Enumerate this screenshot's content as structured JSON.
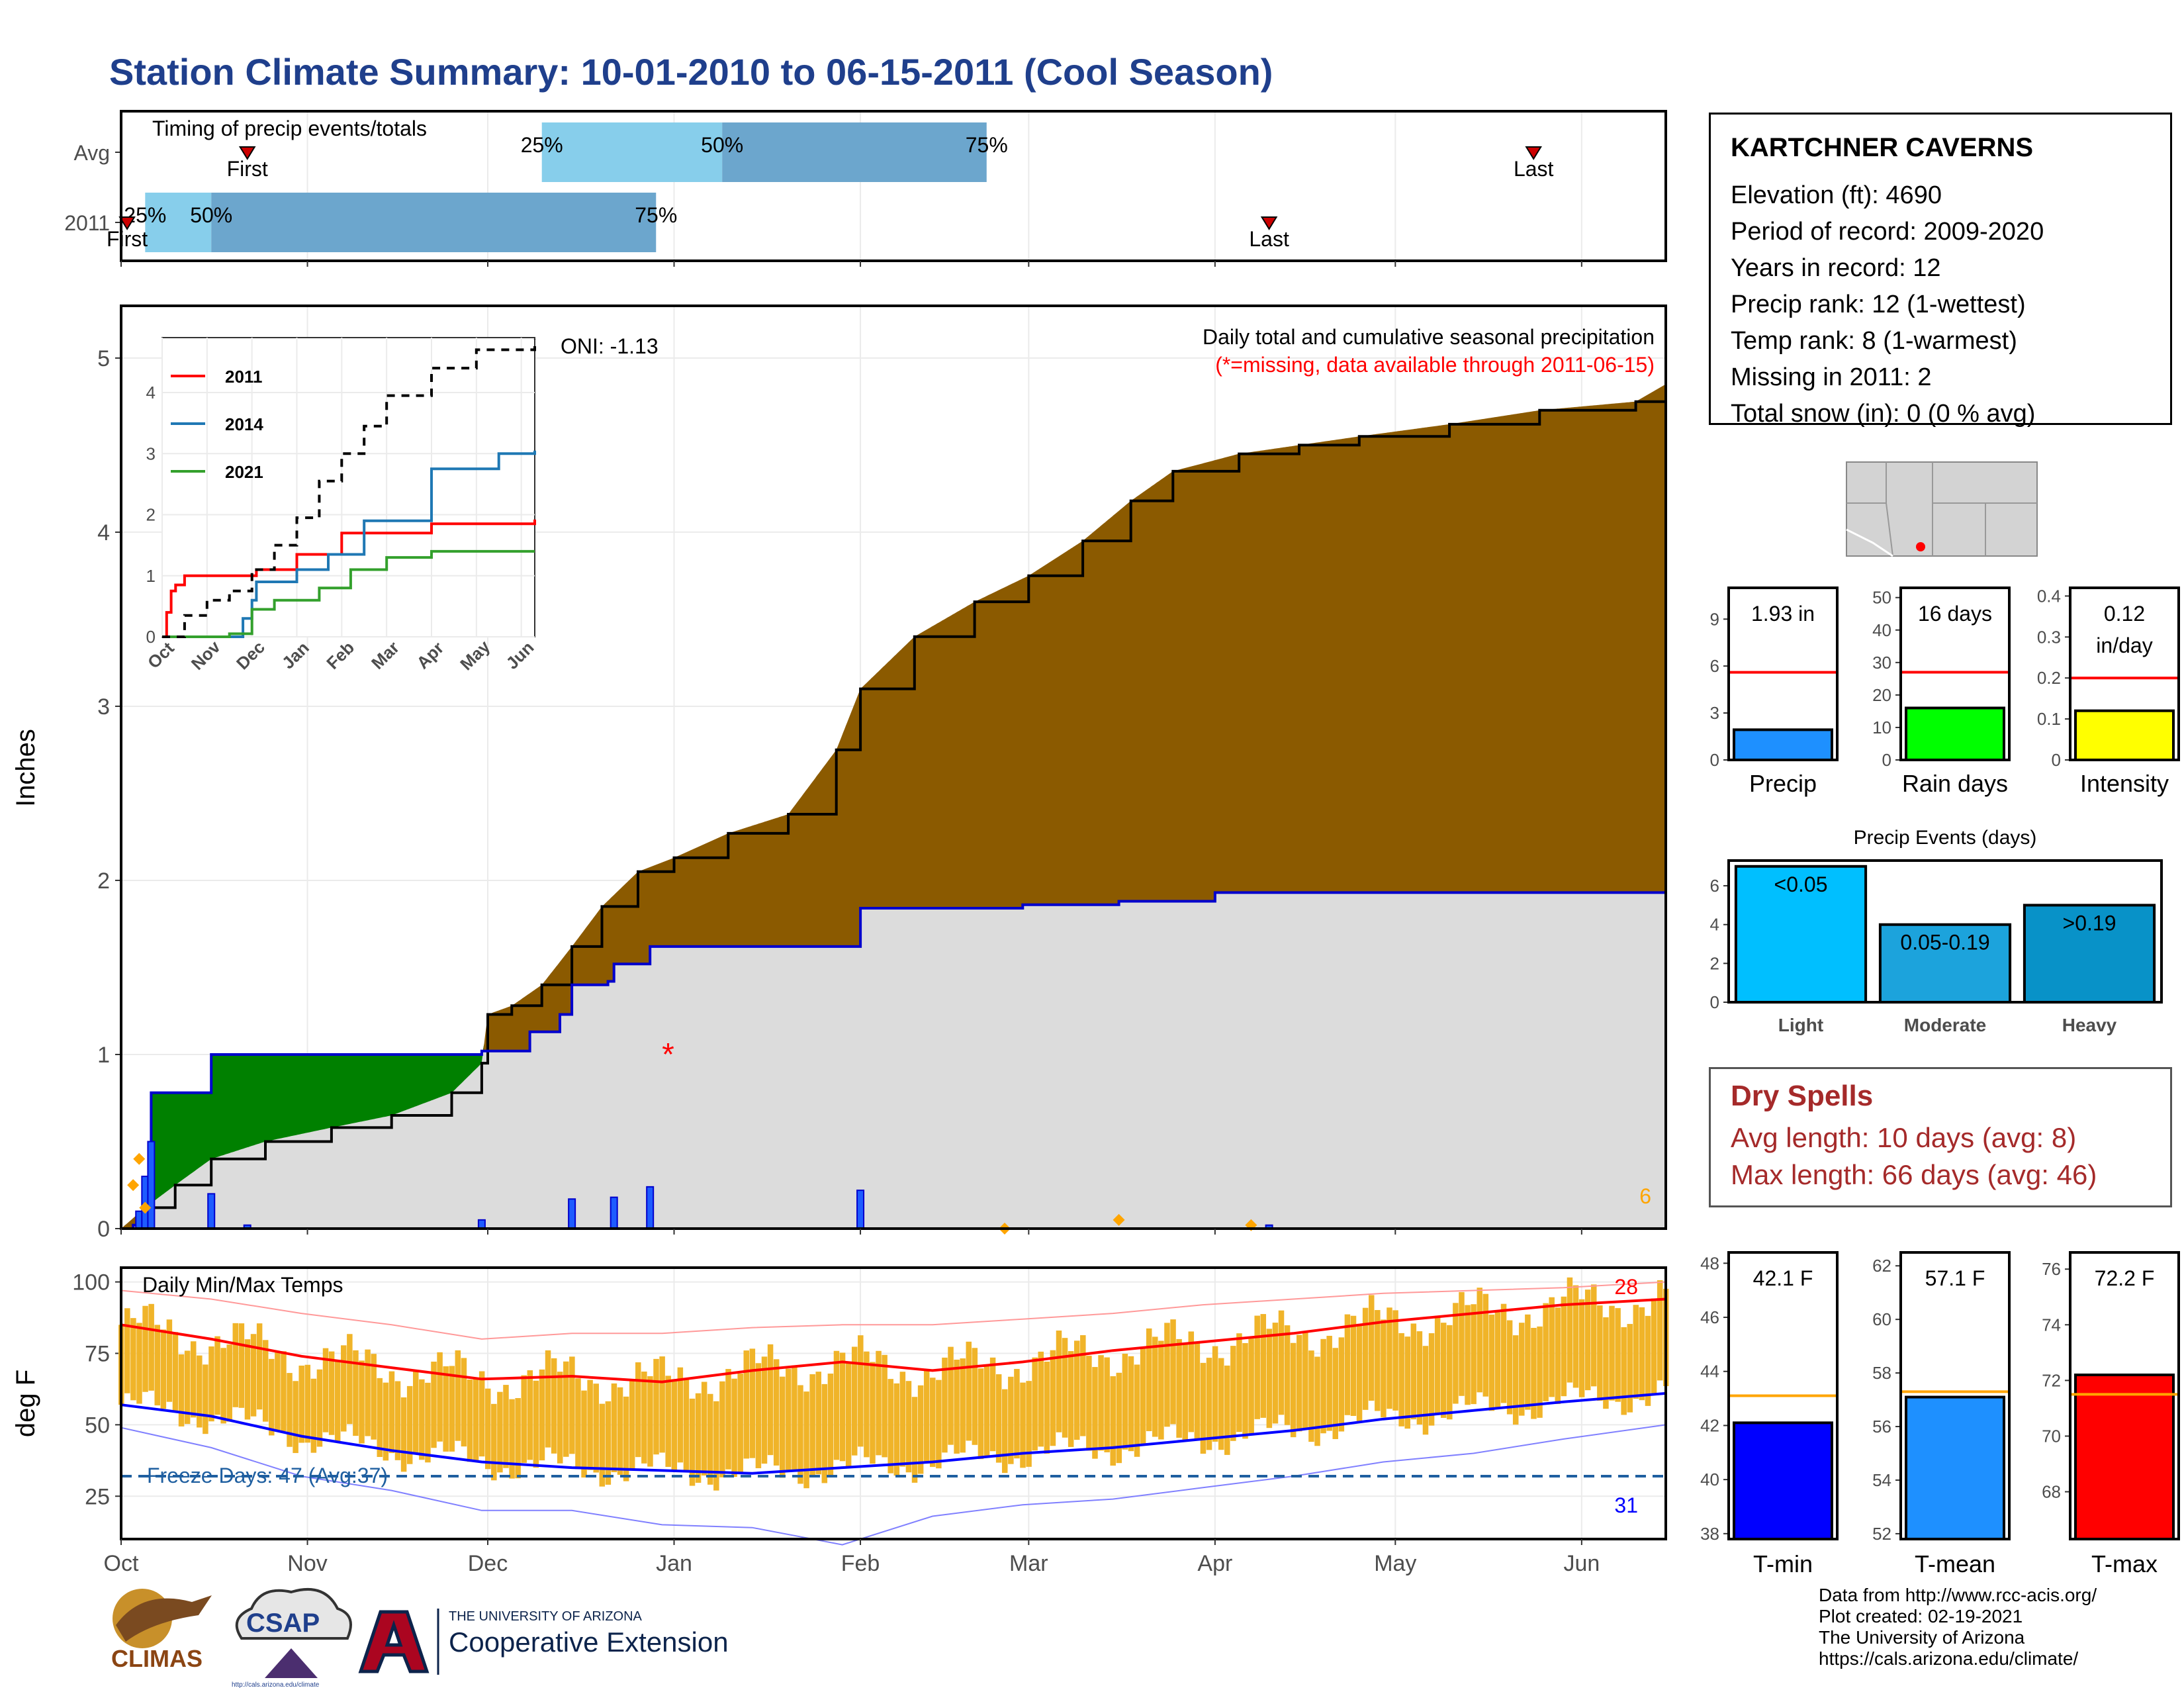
{
  "title": "Station Climate Summary: 10-01-2010 to 06-15-2011 (Cool Season)",
  "station": {
    "name": "KARTCHNER CAVERNS",
    "lines": [
      "Elevation (ft): 4690",
      "Period of record: 2009-2020",
      "Years in record: 12",
      "Precip rank: 12 (1-wettest)",
      "Temp rank: 8 (1-warmest)",
      "Missing in 2011: 2",
      "Total snow (in): 0 (0 % avg)"
    ]
  },
  "dry_spells": {
    "title": "Dry Spells",
    "avg_line": "Avg length: 10 days (avg: 8)",
    "max_line": "Max length: 66 days (avg: 46)"
  },
  "footer": {
    "lines": [
      "Data from http://www.rcc-acis.org/",
      "Plot created: 02-19-2021",
      "The University of Arizona",
      "https://cals.arizona.edu/climate/"
    ],
    "logos": [
      "CLIMAS",
      "CSAP",
      "THE UNIVERSITY OF ARIZONA",
      "Cooperative Extension",
      "http://cals.arizona.edu/climate"
    ]
  },
  "colors": {
    "title": "#1f3f8c",
    "bar_light": "#87ceeb",
    "bar_dark": "#6ca6cd",
    "deficit": "#8b5a00",
    "surplus": "#008000",
    "normal_fill": "#dcdcdc",
    "normal_line": "#0000cd",
    "tmax": "#ff0000",
    "tmin": "#0000ff",
    "temp_bar": "#f0b429",
    "dry": "#a52a2a",
    "onimark": "#ff0000",
    "freeze": "#1f5fa0"
  },
  "chart_data": [
    {
      "type": "bar",
      "name": "timing",
      "title": "Timing of precip events/totals",
      "x_month_ticks": [
        "Oct",
        "Nov",
        "Dec",
        "Jan",
        "Feb",
        "Mar",
        "Apr",
        "May",
        "Jun"
      ],
      "rows": [
        {
          "label": "Avg",
          "first": "2010-10-22",
          "last": "2011-05-24",
          "p25": "2010-12-10",
          "p50": "2011-01-09",
          "p75": "2011-02-22",
          "labels": {
            "first": "First",
            "last": "Last",
            "p25": "25%",
            "p50": "50%",
            "p75": "75%"
          }
        },
        {
          "label": "2011",
          "first": "2010-10-02",
          "last": "2011-04-10",
          "p25": "2010-10-05",
          "p50": "2010-10-16",
          "p75": "2010-12-29",
          "labels": {
            "first": "First",
            "last": "Last",
            "p25": "25%",
            "p50": "50%",
            "p75": "75%"
          }
        }
      ]
    },
    {
      "type": "area",
      "name": "precip",
      "ylabel": "Inches",
      "subtitle1": "Daily total and cumulative seasonal precipitation",
      "subtitle2": "(*=missing, data available through 2011-06-15)",
      "oni": "ONI: -1.13",
      "ylim": [
        0,
        5.3
      ],
      "y_ticks": [
        0,
        1,
        2,
        3,
        4,
        5
      ],
      "x_month_ticks": [
        "Oct",
        "Nov",
        "Dec",
        "Jan",
        "Feb",
        "Mar",
        "Apr",
        "May",
        "Jun"
      ],
      "count_label": "6",
      "missing_marker": {
        "x": "2010-12-31",
        "y": 1.0
      },
      "observed_cumulative": [
        [
          "2010-10-01",
          0
        ],
        [
          "2010-10-03",
          0.02
        ],
        [
          "2010-10-04",
          0.08
        ],
        [
          "2010-10-05",
          0.28
        ],
        [
          "2010-10-06",
          0.78
        ],
        [
          "2010-10-16",
          1.0
        ],
        [
          "2010-11-30",
          1.02
        ],
        [
          "2010-12-08",
          1.13
        ],
        [
          "2010-12-13",
          1.23
        ],
        [
          "2010-12-15",
          1.4
        ],
        [
          "2010-12-21",
          1.42
        ],
        [
          "2010-12-22",
          1.52
        ],
        [
          "2010-12-28",
          1.62
        ],
        [
          "2011-02-01",
          1.84
        ],
        [
          "2011-02-28",
          1.86
        ],
        [
          "2011-03-16",
          1.88
        ],
        [
          "2011-04-01",
          1.93
        ],
        [
          "2011-06-15",
          1.93
        ]
      ],
      "avg_cumulative": [
        [
          "2010-10-01",
          0.0
        ],
        [
          "2010-10-05",
          0.12
        ],
        [
          "2010-10-10",
          0.25
        ],
        [
          "2010-10-16",
          0.4
        ],
        [
          "2010-10-25",
          0.5
        ],
        [
          "2010-11-05",
          0.58
        ],
        [
          "2010-11-15",
          0.65
        ],
        [
          "2010-11-25",
          0.78
        ],
        [
          "2010-11-30",
          0.95
        ],
        [
          "2010-12-01",
          1.23
        ],
        [
          "2010-12-05",
          1.28
        ],
        [
          "2010-12-10",
          1.4
        ],
        [
          "2010-12-15",
          1.62
        ],
        [
          "2010-12-20",
          1.85
        ],
        [
          "2010-12-26",
          2.05
        ],
        [
          "2011-01-01",
          2.13
        ],
        [
          "2011-01-10",
          2.27
        ],
        [
          "2011-01-20",
          2.38
        ],
        [
          "2011-01-28",
          2.75
        ],
        [
          "2011-02-01",
          3.1
        ],
        [
          "2011-02-10",
          3.4
        ],
        [
          "2011-02-20",
          3.6
        ],
        [
          "2011-03-01",
          3.75
        ],
        [
          "2011-03-10",
          3.95
        ],
        [
          "2011-03-18",
          4.18
        ],
        [
          "2011-03-25",
          4.35
        ],
        [
          "2011-04-05",
          4.45
        ],
        [
          "2011-04-15",
          4.5
        ],
        [
          "2011-04-25",
          4.55
        ],
        [
          "2011-05-10",
          4.62
        ],
        [
          "2011-05-25",
          4.7
        ],
        [
          "2011-06-10",
          4.75
        ],
        [
          "2011-06-15",
          4.85
        ]
      ],
      "daily_bars": [
        [
          "2010-10-04",
          0.1
        ],
        [
          "2010-10-05",
          0.3
        ],
        [
          "2010-10-06",
          0.5
        ],
        [
          "2010-10-16",
          0.2
        ],
        [
          "2010-10-22",
          0.02
        ],
        [
          "2010-11-30",
          0.05
        ],
        [
          "2010-12-15",
          0.17
        ],
        [
          "2010-12-22",
          0.18
        ],
        [
          "2010-12-28",
          0.24
        ],
        [
          "2011-02-01",
          0.22
        ],
        [
          "2011-04-10",
          0.02
        ]
      ],
      "event_points": [
        [
          "2010-10-03",
          0.25
        ],
        [
          "2010-10-04",
          0.4
        ],
        [
          "2010-10-05",
          0.12
        ],
        [
          "2011-02-25",
          0.0
        ],
        [
          "2011-03-16",
          0.05
        ],
        [
          "2011-04-07",
          0.02
        ]
      ]
    },
    {
      "type": "line",
      "name": "inset",
      "x_month_ticks": [
        "Oct",
        "Nov",
        "Dec",
        "Jan",
        "Feb",
        "Mar",
        "Apr",
        "May",
        "Jun"
      ],
      "y_ticks": [
        0,
        1,
        2,
        3,
        4
      ],
      "ylim": [
        0,
        4.9
      ],
      "series": [
        {
          "name": "2011",
          "color": "#ff0000",
          "points": [
            [
              0,
              0
            ],
            [
              0.1,
              0.4
            ],
            [
              0.2,
              0.75
            ],
            [
              0.3,
              0.85
            ],
            [
              0.5,
              1.0
            ],
            [
              2.0,
              1.0
            ],
            [
              2.1,
              1.1
            ],
            [
              3.0,
              1.35
            ],
            [
              4.0,
              1.7
            ],
            [
              6.0,
              1.85
            ],
            [
              8.3,
              1.92
            ]
          ]
        },
        {
          "name": "2014",
          "color": "#1f78b4",
          "points": [
            [
              0,
              0
            ],
            [
              1.0,
              0.0
            ],
            [
              1.8,
              0.3
            ],
            [
              2.0,
              0.6
            ],
            [
              2.1,
              0.9
            ],
            [
              3.0,
              1.1
            ],
            [
              3.7,
              1.35
            ],
            [
              4.5,
              1.9
            ],
            [
              6.0,
              2.75
            ],
            [
              7.5,
              3.0
            ],
            [
              8.3,
              3.05
            ]
          ]
        },
        {
          "name": "2021",
          "color": "#33a02c",
          "points": [
            [
              0,
              0
            ],
            [
              1.0,
              0.0
            ],
            [
              1.5,
              0.05
            ],
            [
              2.0,
              0.45
            ],
            [
              2.5,
              0.6
            ],
            [
              3.5,
              0.8
            ],
            [
              4.2,
              1.1
            ],
            [
              5.0,
              1.3
            ],
            [
              6.0,
              1.4
            ],
            [
              8.3,
              1.4
            ]
          ]
        },
        {
          "name": "",
          "color": "#000000",
          "dashed": true,
          "points": [
            [
              0,
              0
            ],
            [
              0.5,
              0.35
            ],
            [
              1.0,
              0.6
            ],
            [
              1.5,
              0.75
            ],
            [
              2.0,
              1.1
            ],
            [
              2.5,
              1.5
            ],
            [
              3.0,
              1.95
            ],
            [
              3.5,
              2.55
            ],
            [
              4.0,
              3.0
            ],
            [
              4.5,
              3.45
            ],
            [
              5.0,
              3.95
            ],
            [
              6.0,
              4.4
            ],
            [
              7.0,
              4.7
            ],
            [
              8.3,
              4.87
            ]
          ]
        }
      ]
    },
    {
      "type": "bar",
      "name": "temps",
      "title": "Daily Min/Max Temps",
      "ylabel": "deg F",
      "ylim": [
        10,
        105
      ],
      "y_ticks": [
        25,
        50,
        75,
        100
      ],
      "x_month_ticks": [
        "Oct",
        "Nov",
        "Dec",
        "Jan",
        "Feb",
        "Mar",
        "Apr",
        "May",
        "Jun"
      ],
      "freeze_line": 32,
      "freeze_label": "Freeze Days: 47 (Avg:37)",
      "record_high_count": "28",
      "record_low_count": "31",
      "avg_max": [
        [
          0,
          85
        ],
        [
          15,
          80
        ],
        [
          30,
          74
        ],
        [
          45,
          70
        ],
        [
          60,
          66
        ],
        [
          75,
          67
        ],
        [
          90,
          65
        ],
        [
          105,
          69
        ],
        [
          120,
          72
        ],
        [
          135,
          69
        ],
        [
          150,
          72
        ],
        [
          165,
          76
        ],
        [
          180,
          79
        ],
        [
          195,
          82
        ],
        [
          210,
          86
        ],
        [
          225,
          89
        ],
        [
          240,
          92
        ],
        [
          257,
          94
        ]
      ],
      "avg_min": [
        [
          0,
          57
        ],
        [
          15,
          53
        ],
        [
          30,
          46
        ],
        [
          45,
          41
        ],
        [
          60,
          37
        ],
        [
          75,
          35
        ],
        [
          90,
          34
        ],
        [
          105,
          33
        ],
        [
          120,
          35
        ],
        [
          135,
          37
        ],
        [
          150,
          40
        ],
        [
          165,
          42
        ],
        [
          180,
          45
        ],
        [
          195,
          48
        ],
        [
          210,
          52
        ],
        [
          225,
          55
        ],
        [
          240,
          58
        ],
        [
          257,
          61
        ]
      ],
      "record_max": [
        [
          0,
          97
        ],
        [
          15,
          94
        ],
        [
          30,
          89
        ],
        [
          45,
          85
        ],
        [
          60,
          80
        ],
        [
          75,
          82
        ],
        [
          90,
          82
        ],
        [
          105,
          84
        ],
        [
          120,
          85
        ],
        [
          135,
          85
        ],
        [
          150,
          87
        ],
        [
          165,
          89
        ],
        [
          180,
          92
        ],
        [
          195,
          94
        ],
        [
          210,
          96
        ],
        [
          225,
          97
        ],
        [
          240,
          98
        ],
        [
          257,
          100
        ]
      ],
      "record_min": [
        [
          0,
          49
        ],
        [
          15,
          42
        ],
        [
          30,
          32
        ],
        [
          45,
          27
        ],
        [
          60,
          20
        ],
        [
          75,
          20
        ],
        [
          90,
          15
        ],
        [
          105,
          14
        ],
        [
          120,
          8
        ],
        [
          135,
          18
        ],
        [
          150,
          22
        ],
        [
          165,
          24
        ],
        [
          180,
          28
        ],
        [
          195,
          32
        ],
        [
          210,
          37
        ],
        [
          225,
          40
        ],
        [
          240,
          45
        ],
        [
          257,
          50
        ]
      ]
    },
    {
      "type": "bar",
      "name": "precip_summary",
      "panels": [
        {
          "label": "Precip",
          "value": 1.93,
          "value_text": "1.93 in",
          "avg": 5.6,
          "ylim": [
            0,
            11
          ],
          "y_ticks": [
            0,
            3,
            6,
            9
          ],
          "color": "#1e90ff"
        },
        {
          "label": "Rain days",
          "value": 16,
          "value_text": "16 days",
          "avg": 27,
          "ylim": [
            0,
            53
          ],
          "y_ticks": [
            0,
            10,
            20,
            30,
            40,
            50
          ],
          "color": "#00ff00"
        },
        {
          "label": "Intensity",
          "value": 0.12,
          "value_text": "0.12 in/day",
          "avg": 0.2,
          "ylim": [
            0,
            0.42
          ],
          "y_ticks": [
            0.0,
            0.1,
            0.2,
            0.3,
            0.4
          ],
          "color": "#ffff00"
        }
      ]
    },
    {
      "type": "bar",
      "name": "precip_events",
      "title": "Precip Events (days)",
      "categories": [
        "Light",
        "Moderate",
        "Heavy"
      ],
      "bar_labels": [
        "<0.05",
        "0.05-0.19",
        ">0.19"
      ],
      "values": [
        7,
        4,
        5
      ],
      "ylim": [
        0,
        7.3
      ],
      "y_ticks": [
        0,
        2,
        4,
        6
      ],
      "colors": [
        "#00bfff",
        "#1ca3dc",
        "#0892c8"
      ]
    },
    {
      "type": "bar",
      "name": "temp_summary",
      "panels": [
        {
          "label": "T-min",
          "value": 42.1,
          "value_text": "42.1 F",
          "avg": 43.1,
          "ylim": [
            37.8,
            48.4
          ],
          "y_ticks": [
            38,
            40,
            42,
            44,
            46,
            48
          ],
          "color": "#0000ff"
        },
        {
          "label": "T-mean",
          "value": 57.1,
          "value_text": "57.1 F",
          "avg": 57.3,
          "ylim": [
            51.8,
            62.5
          ],
          "y_ticks": [
            52,
            54,
            56,
            58,
            60,
            62
          ],
          "color": "#1e90ff"
        },
        {
          "label": "T-max",
          "value": 72.2,
          "value_text": "72.2 F",
          "avg": 71.5,
          "ylim": [
            66.3,
            76.6
          ],
          "y_ticks": [
            68,
            70,
            72,
            74,
            76
          ],
          "color": "#ff0000"
        }
      ]
    }
  ]
}
